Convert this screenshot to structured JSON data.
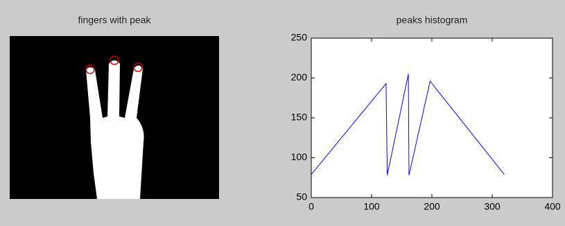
{
  "image_panel": {
    "title": "fingers with peak"
  },
  "chart_data": {
    "type": "line",
    "title": "peaks histogram",
    "x": [
      0,
      124,
      126,
      161,
      162,
      197,
      320
    ],
    "values": [
      79,
      193,
      78,
      205,
      78,
      196,
      79
    ],
    "color": "#0000ff",
    "xlim": [
      0,
      400
    ],
    "ylim": [
      50,
      250
    ],
    "xticks": [
      0,
      100,
      200,
      300,
      400
    ],
    "yticks": [
      50,
      100,
      150,
      200,
      250
    ]
  }
}
